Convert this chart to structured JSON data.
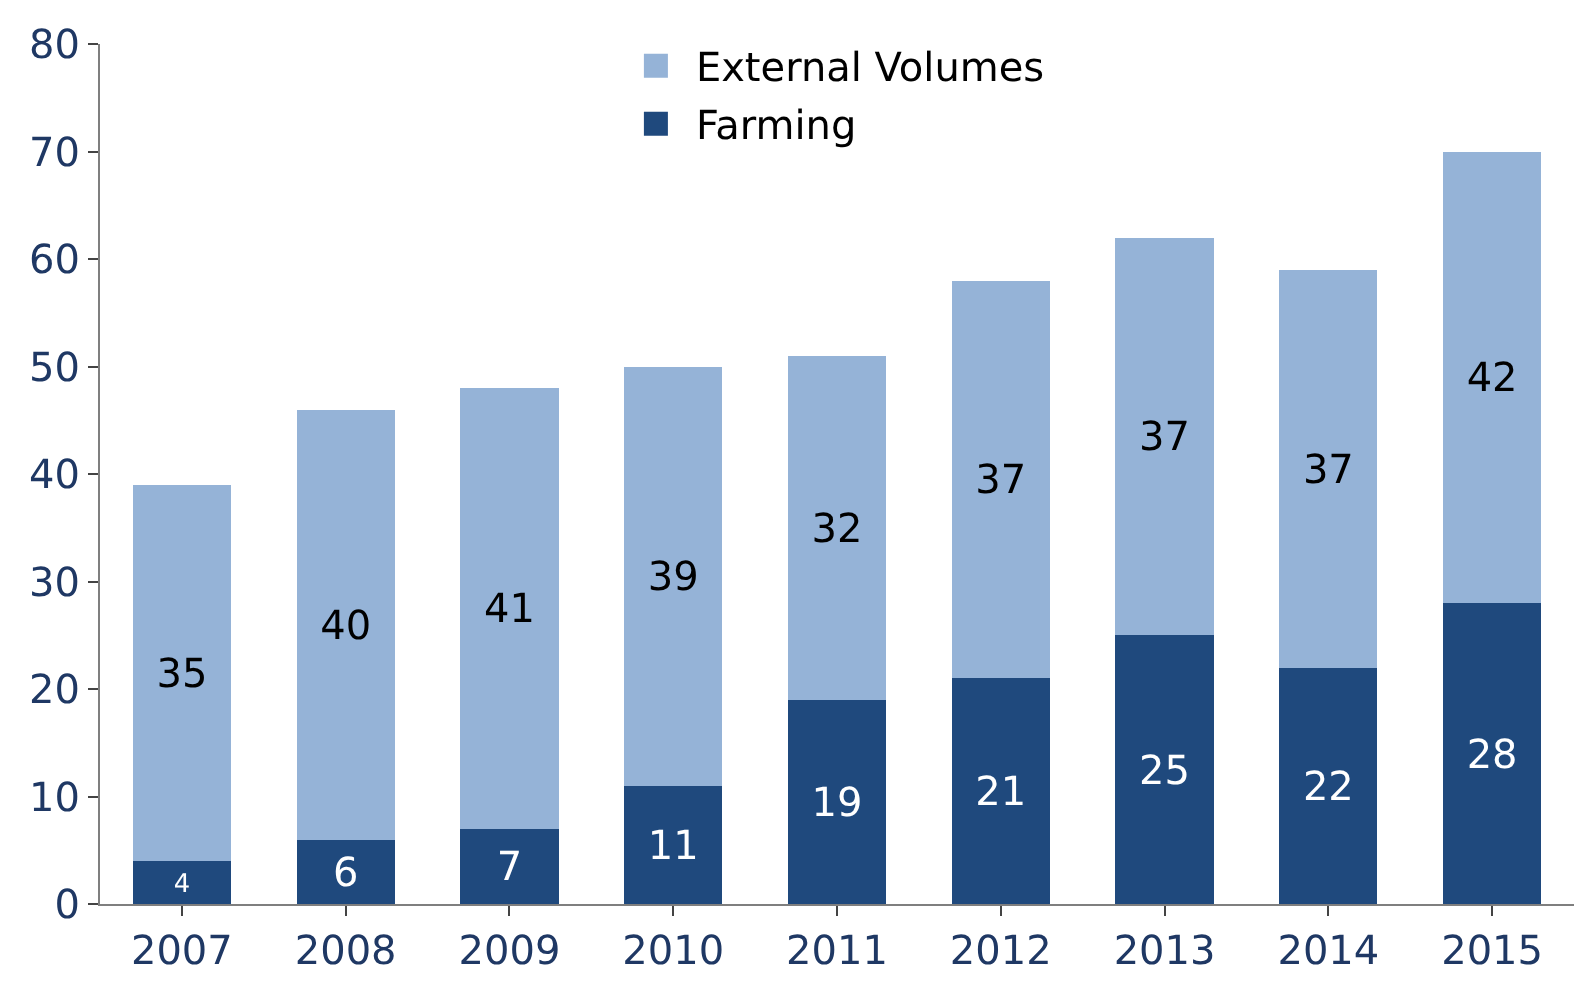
{
  "chart_data": {
    "type": "bar",
    "stacked": true,
    "data_labels": true,
    "categories": [
      "2007",
      "2008",
      "2009",
      "2010",
      "2011",
      "2012",
      "2013",
      "2014",
      "2015"
    ],
    "series": [
      {
        "name": "Farming",
        "color": "#1f497d",
        "values": [
          4,
          6,
          7,
          11,
          19,
          21,
          25,
          22,
          28
        ]
      },
      {
        "name": "External Volumes",
        "color": "#95b3d7",
        "values": [
          35,
          40,
          41,
          39,
          32,
          37,
          37,
          37,
          42
        ]
      }
    ],
    "ylim": [
      0,
      80
    ],
    "yticks": [
      0,
      10,
      20,
      30,
      40,
      50,
      60,
      70,
      80
    ],
    "legend": "top"
  }
}
